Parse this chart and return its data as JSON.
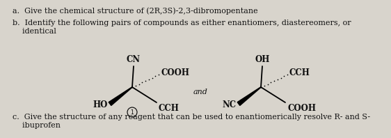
{
  "background_color": "#d8d4cc",
  "text_color": "#111111",
  "question_a": "a.  Give the chemical structure of (2R,3S)-2,3-dibromopentane",
  "question_b_line1": "b.  Identify the following pairs of compounds as either enantiomers, diastereomers, or",
  "question_b_line2": "    identical",
  "question_c_line1": "c.  Give the structure of any reagent that can be used to enantiomerically resolve R- and S-",
  "question_c_line2": "    ibuprofen",
  "and_text": "and",
  "mol1": {
    "top": "CN",
    "upper_right": "COOH",
    "lower_right": "CCH",
    "lower_left": "HO"
  },
  "mol2": {
    "top": "OH",
    "upper_right": "CCH",
    "lower_right": "COOH",
    "lower_left": "NC"
  },
  "font_size": 8.0,
  "mol_font_size": 8.5
}
